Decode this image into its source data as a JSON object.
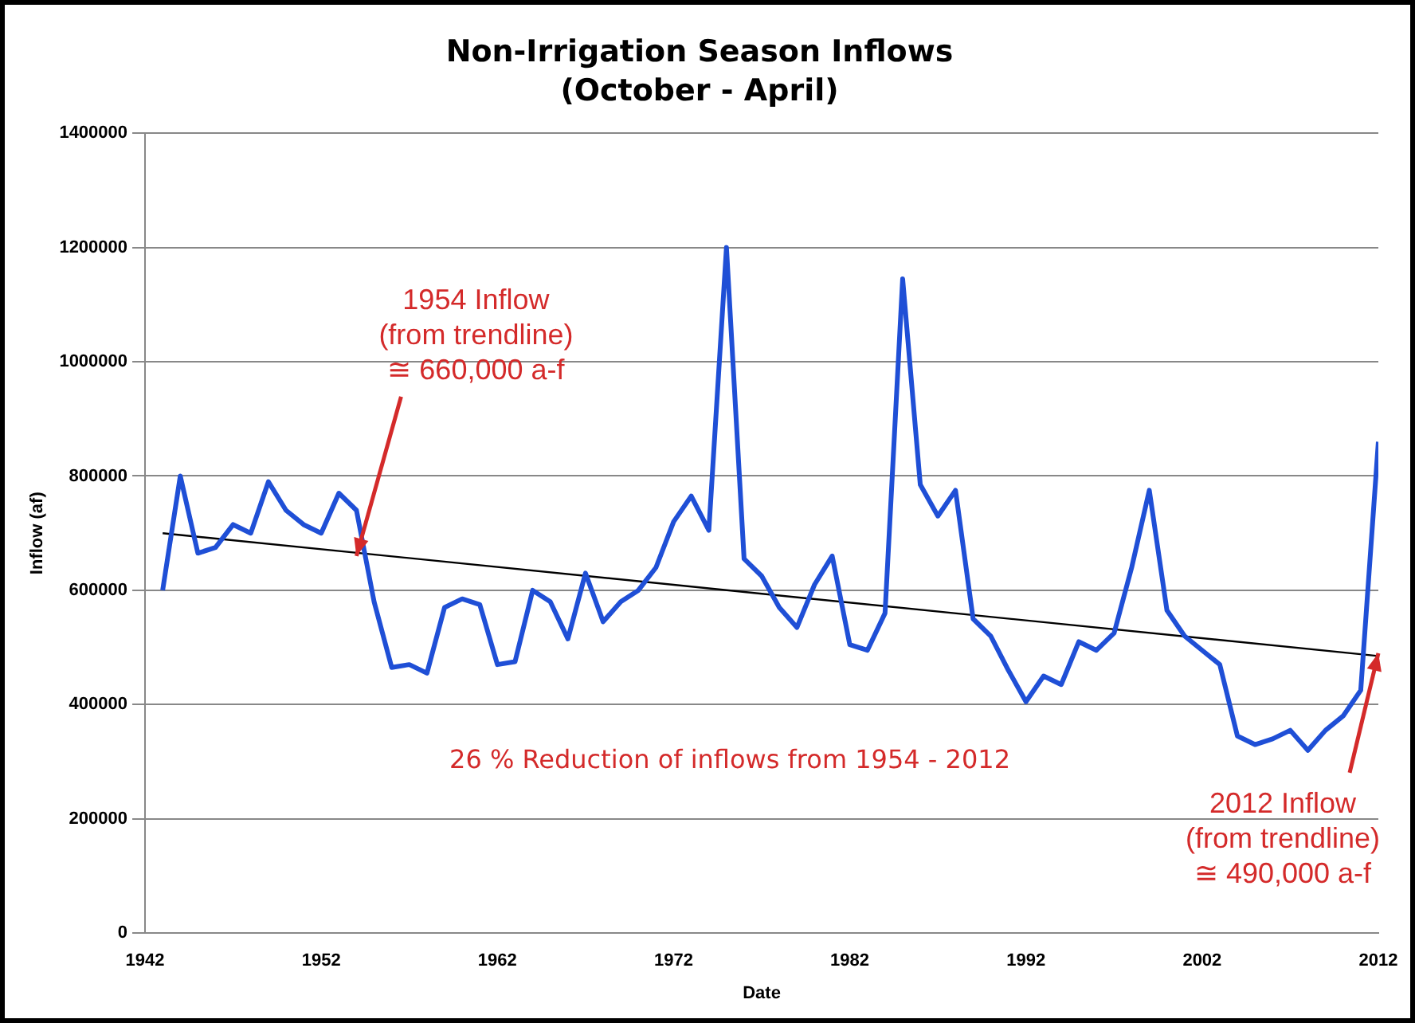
{
  "chart_data": {
    "type": "line",
    "title": "Non-Irrigation Season Inflows",
    "subtitle": "(October - April)",
    "xlabel": "Date",
    "ylabel": "Inflow (af)",
    "x": [
      1943,
      1944,
      1945,
      1946,
      1947,
      1948,
      1949,
      1950,
      1951,
      1952,
      1953,
      1954,
      1955,
      1956,
      1957,
      1958,
      1959,
      1960,
      1961,
      1962,
      1963,
      1964,
      1965,
      1966,
      1967,
      1968,
      1969,
      1970,
      1971,
      1972,
      1973,
      1974,
      1975,
      1976,
      1977,
      1978,
      1979,
      1980,
      1981,
      1982,
      1983,
      1984,
      1985,
      1986,
      1987,
      1988,
      1989,
      1990,
      1991,
      1992,
      1993,
      1994,
      1995,
      1996,
      1997,
      1998,
      1999,
      2000,
      2001,
      2002,
      2003,
      2004,
      2005,
      2006,
      2007,
      2008,
      2009,
      2010,
      2011,
      2012
    ],
    "series": [
      {
        "color": "#1f4fd6",
        "values": [
          600000,
          800000,
          665000,
          675000,
          715000,
          700000,
          790000,
          740000,
          715000,
          700000,
          770000,
          740000,
          580000,
          465000,
          470000,
          455000,
          570000,
          585000,
          575000,
          470000,
          475000,
          600000,
          580000,
          515000,
          630000,
          545000,
          580000,
          600000,
          640000,
          720000,
          765000,
          705000,
          1200000,
          655000,
          625000,
          570000,
          535000,
          610000,
          660000,
          505000,
          495000,
          560000,
          1145000,
          785000,
          730000,
          775000,
          550000,
          520000,
          460000,
          405000,
          450000,
          435000,
          510000,
          495000,
          525000,
          640000,
          775000,
          565000,
          520000,
          495000,
          470000,
          345000,
          330000,
          340000,
          355000,
          320000,
          355000,
          380000,
          425000,
          860000
        ]
      },
      {
        "type": "line",
        "color": "#000000",
        "x": [
          1943,
          2012
        ],
        "values": [
          700000,
          485000
        ]
      }
    ],
    "xlim": [
      1942,
      2012
    ],
    "xticks": [
      1942,
      1952,
      1962,
      1972,
      1982,
      1992,
      2002,
      2012
    ],
    "ylim": [
      0,
      1400000
    ],
    "yticks": [
      0,
      200000,
      400000,
      600000,
      800000,
      1000000,
      1200000,
      1400000
    ],
    "grid": "y",
    "legend": false,
    "marker": "none",
    "line_style": "solid",
    "annotations": [
      {
        "text": "1954 Inflow\n(from trendline)\n≅ 660,000 a-f",
        "x": 1954,
        "y": 660000
      },
      "26 % Reduction of inflows from 1954 - 2012",
      {
        "text": "2012 Inflow\n(from trendline)\n≅ 490,000 a-f",
        "x": 2012,
        "y": 490000
      }
    ]
  }
}
